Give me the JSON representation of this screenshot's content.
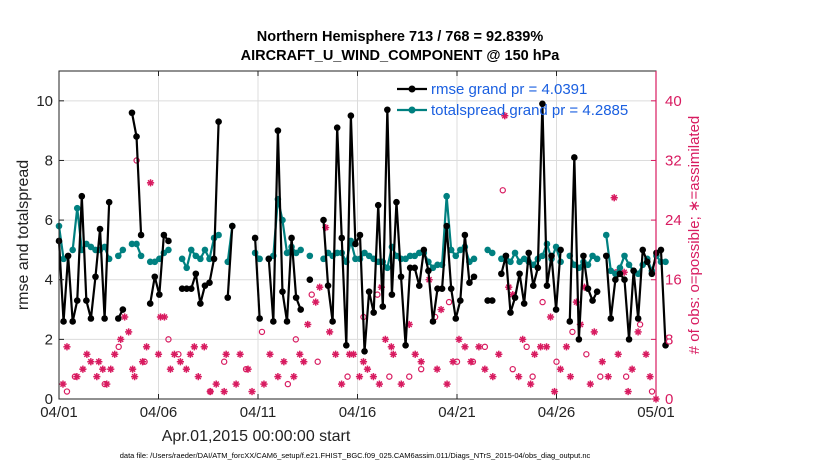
{
  "chart_data": {
    "type": "line",
    "title_line1": "Northern Hemisphere 713 / 768 = 92.839%",
    "title_line2": "AIRCRAFT_U_WIND_COMPONENT @ 150 hPa",
    "xlabel": "Apr.01,2015 00:00:00 start",
    "ylabel": "rmse and totalspread",
    "y2label": "# of obs: o=possible; ∗=assimilated",
    "footer": "data file: /Users/raeder/DAI/ATM_forcXX/CAM6_setup/f.e21.FHIST_BGC.f09_025.CAM6assim.011/Diags_NTrS_2015-04/obs_diag_output.nc",
    "xlim": [
      0,
      30
    ],
    "ylim": [
      0,
      11
    ],
    "y2lim": [
      0,
      44
    ],
    "xticks": [
      0,
      5,
      10,
      15,
      20,
      25,
      30
    ],
    "xticklabels": [
      "04/01",
      "04/06",
      "04/11",
      "04/16",
      "04/21",
      "04/26",
      "05/01"
    ],
    "yticks": [
      0,
      2,
      4,
      6,
      8,
      10
    ],
    "yticklabels": [
      "0",
      "2",
      "4",
      "6",
      "8",
      "10"
    ],
    "y2ticks": [
      0,
      8,
      16,
      24,
      32,
      40
    ],
    "y2ticklabels": [
      "0",
      "8",
      "16",
      "24",
      "32",
      "40"
    ],
    "colors": {
      "rmse": "#000000",
      "spread": "#008080",
      "obs": "#d81b60",
      "legend_text": "#1a5fe0"
    },
    "series": [
      {
        "name": "rmse grand pr = 4.0391",
        "color": "#000000",
        "values": [
          5.3,
          2.6,
          4.8,
          2.6,
          3.3,
          6.8,
          3.3,
          2.7,
          4.1,
          5.7,
          2.7,
          6.6,
          null,
          2.7,
          3.0,
          null,
          9.6,
          8.8,
          5.5,
          null,
          3.2,
          4.1,
          3.5,
          5.5,
          5.3,
          null,
          null,
          3.7,
          3.7,
          3.7,
          4.2,
          3.2,
          3.8,
          3.9,
          4.7,
          9.3,
          null,
          3.4,
          5.8,
          null,
          null,
          null,
          null,
          5.4,
          2.7,
          null,
          4.7,
          2.6,
          9.0,
          3.6,
          2.6,
          5.4,
          3.4,
          3.0,
          null,
          4.0,
          null,
          null,
          6.0,
          3.8,
          2.6,
          9.1,
          5.4,
          1.8,
          9.5,
          5.2,
          5.5,
          1.6,
          3.6,
          2.9,
          6.5,
          3.1,
          9.7,
          3.5,
          6.6,
          4.1,
          1.8,
          4.4,
          4.4,
          3.8,
          5.0,
          4.3,
          2.6,
          3.7,
          3.7,
          5.8,
          3.7,
          2.7,
          3.3,
          5.5,
          3.9,
          4.1,
          null,
          null,
          3.3,
          3.3,
          null,
          4.2,
          4.8,
          2.9,
          3.4,
          4.2,
          3.2,
          4.9,
          3.8,
          4.4,
          9.9,
          3.8,
          4.8,
          3.0,
          5.0,
          null,
          2.6,
          8.1,
          2.0,
          4.8,
          3.7,
          3.3,
          3.6,
          null,
          4.8,
          2.7,
          4.0,
          4.2,
          4.0,
          2.0,
          4.3,
          2.7,
          5.0,
          4.6,
          4.2,
          4.9,
          5.0,
          1.8
        ],
        "x_hours_step": 5.5
      },
      {
        "name": "totalspread grand pr = 4.2885",
        "color": "#008080",
        "values": [
          5.8,
          4.7,
          null,
          5.0,
          6.4,
          5.0,
          5.2,
          5.1,
          5.0,
          5.0,
          5.1,
          4.7,
          null,
          4.8,
          5.0,
          null,
          5.2,
          5.2,
          4.8,
          null,
          4.6,
          4.6,
          4.7,
          4.9,
          5.0,
          null,
          null,
          4.7,
          4.4,
          5.0,
          4.8,
          4.7,
          5.0,
          4.7,
          5.4,
          5.5,
          null,
          4.6,
          5.8,
          null,
          null,
          null,
          null,
          4.9,
          4.7,
          null,
          4.7,
          4.8,
          6.7,
          6.0,
          4.9,
          5.1,
          4.9,
          5.0,
          null,
          4.8,
          null,
          null,
          4.7,
          4.9,
          4.8,
          4.9,
          4.9,
          4.6,
          5.3,
          4.7,
          4.7,
          4.9,
          4.8,
          4.7,
          4.6,
          4.6,
          4.4,
          5.1,
          4.8,
          4.7,
          4.7,
          4.8,
          4.8,
          4.9,
          4.9,
          4.6,
          4.4,
          4.5,
          4.5,
          6.8,
          5.0,
          4.8,
          5.0,
          5.1,
          4.6,
          4.7,
          null,
          null,
          5.0,
          4.9,
          null,
          4.7,
          4.8,
          4.6,
          4.9,
          4.6,
          4.7,
          4.6,
          4.5,
          4.7,
          4.8,
          5.2,
          4.7,
          5.1,
          4.6,
          null,
          4.8,
          4.5,
          4.4,
          4.6,
          4.5,
          4.8,
          4.7,
          null,
          5.5,
          4.3,
          4.2,
          4.4,
          4.8,
          4.5,
          4.3,
          4.2,
          4.5,
          4.7,
          4.3,
          4.8,
          4.6,
          4.6
        ],
        "x_hours_step": 5.5
      }
    ],
    "obs_assimilated": [
      [
        0.2,
        2
      ],
      [
        0.4,
        7
      ],
      [
        0.9,
        3
      ],
      [
        1.2,
        4
      ],
      [
        1.4,
        6
      ],
      [
        1.6,
        5
      ],
      [
        1.9,
        3
      ],
      [
        2.0,
        5
      ],
      [
        2.2,
        4
      ],
      [
        2.4,
        2
      ],
      [
        2.6,
        4
      ],
      [
        2.8,
        6
      ],
      [
        3.1,
        8
      ],
      [
        3.3,
        11
      ],
      [
        3.5,
        9
      ],
      [
        3.7,
        4
      ],
      [
        3.8,
        3
      ],
      [
        4.2,
        5
      ],
      [
        4.4,
        7
      ],
      [
        4.6,
        29
      ],
      [
        5.0,
        6
      ],
      [
        5.1,
        11
      ],
      [
        5.3,
        11
      ],
      [
        5.6,
        4
      ],
      [
        5.8,
        6
      ],
      [
        6.1,
        5
      ],
      [
        6.4,
        4
      ],
      [
        6.6,
        6
      ],
      [
        6.8,
        7
      ],
      [
        7.0,
        3
      ],
      [
        7.3,
        7
      ],
      [
        7.6,
        1
      ],
      [
        7.9,
        2
      ],
      [
        8.3,
        1
      ],
      [
        8.4,
        6
      ],
      [
        8.9,
        2
      ],
      [
        9.1,
        6
      ],
      [
        9.5,
        4
      ],
      [
        9.7,
        1
      ],
      [
        10.3,
        2
      ],
      [
        10.6,
        6
      ],
      [
        11.0,
        3
      ],
      [
        11.3,
        5
      ],
      [
        11.8,
        3
      ],
      [
        12.1,
        6
      ],
      [
        12.3,
        5
      ],
      [
        12.5,
        10
      ],
      [
        12.9,
        13
      ],
      [
        13.1,
        15
      ],
      [
        13.4,
        23
      ],
      [
        13.6,
        9
      ],
      [
        13.9,
        6
      ],
      [
        14.2,
        2
      ],
      [
        14.6,
        6
      ],
      [
        14.8,
        6
      ],
      [
        15.1,
        3
      ],
      [
        15.3,
        5
      ],
      [
        15.5,
        4
      ],
      [
        15.8,
        3
      ],
      [
        16.1,
        2
      ],
      [
        16.2,
        15
      ],
      [
        16.4,
        8
      ],
      [
        16.7,
        7
      ],
      [
        16.8,
        6
      ],
      [
        17.2,
        2
      ],
      [
        17.6,
        10
      ],
      [
        17.9,
        6
      ],
      [
        18.2,
        5
      ],
      [
        18.6,
        16
      ],
      [
        19.0,
        4
      ],
      [
        19.2,
        12
      ],
      [
        19.5,
        2
      ],
      [
        19.8,
        5
      ],
      [
        20.1,
        8
      ],
      [
        20.4,
        7
      ],
      [
        20.7,
        5
      ],
      [
        21.1,
        7
      ],
      [
        21.4,
        4
      ],
      [
        21.8,
        3
      ],
      [
        22.1,
        6
      ],
      [
        22.4,
        38
      ],
      [
        22.6,
        15
      ],
      [
        22.8,
        14
      ],
      [
        23.1,
        3
      ],
      [
        23.3,
        8
      ],
      [
        23.7,
        2
      ],
      [
        23.9,
        6
      ],
      [
        24.2,
        7
      ],
      [
        24.5,
        7
      ],
      [
        24.7,
        11
      ],
      [
        24.9,
        1
      ],
      [
        25.2,
        4
      ],
      [
        25.5,
        7
      ],
      [
        25.7,
        3
      ],
      [
        26.0,
        13
      ],
      [
        26.2,
        10
      ],
      [
        26.4,
        15
      ],
      [
        26.7,
        2
      ],
      [
        26.9,
        9
      ],
      [
        27.3,
        5
      ],
      [
        27.6,
        3
      ],
      [
        27.9,
        27
      ],
      [
        28.1,
        6
      ],
      [
        28.4,
        17
      ],
      [
        28.6,
        1
      ],
      [
        28.8,
        4
      ],
      [
        29.1,
        9
      ],
      [
        29.5,
        6
      ],
      [
        29.7,
        3
      ],
      [
        30.0,
        0
      ]
    ],
    "obs_possible": [
      [
        0.4,
        1
      ],
      [
        0.8,
        3
      ],
      [
        2.3,
        2
      ],
      [
        3.0,
        7
      ],
      [
        3.9,
        32
      ],
      [
        4.3,
        5
      ],
      [
        5.5,
        8
      ],
      [
        6.0,
        6
      ],
      [
        7.6,
        1
      ],
      [
        8.3,
        5
      ],
      [
        9.4,
        4
      ],
      [
        10.2,
        9
      ],
      [
        11.5,
        2
      ],
      [
        11.9,
        8
      ],
      [
        12.7,
        14
      ],
      [
        13.0,
        5
      ],
      [
        14.5,
        3
      ],
      [
        15.3,
        11
      ],
      [
        16.0,
        14
      ],
      [
        16.6,
        3
      ],
      [
        17.6,
        3
      ],
      [
        18.2,
        4
      ],
      [
        18.9,
        11
      ],
      [
        19.6,
        13
      ],
      [
        20.0,
        5
      ],
      [
        20.8,
        5
      ],
      [
        21.4,
        7
      ],
      [
        22.3,
        28
      ],
      [
        22.8,
        4
      ],
      [
        23.5,
        7
      ],
      [
        23.8,
        3
      ],
      [
        24.3,
        13
      ],
      [
        25.0,
        5
      ],
      [
        25.8,
        9
      ],
      [
        26.5,
        6
      ],
      [
        27.2,
        3
      ],
      [
        28.0,
        17
      ],
      [
        28.5,
        3
      ],
      [
        29.2,
        10
      ],
      [
        29.8,
        1
      ]
    ]
  },
  "legend": {
    "rmse_label": "rmse grand pr = 4.0391",
    "spread_label": "totalspread grand pr = 4.2885"
  }
}
